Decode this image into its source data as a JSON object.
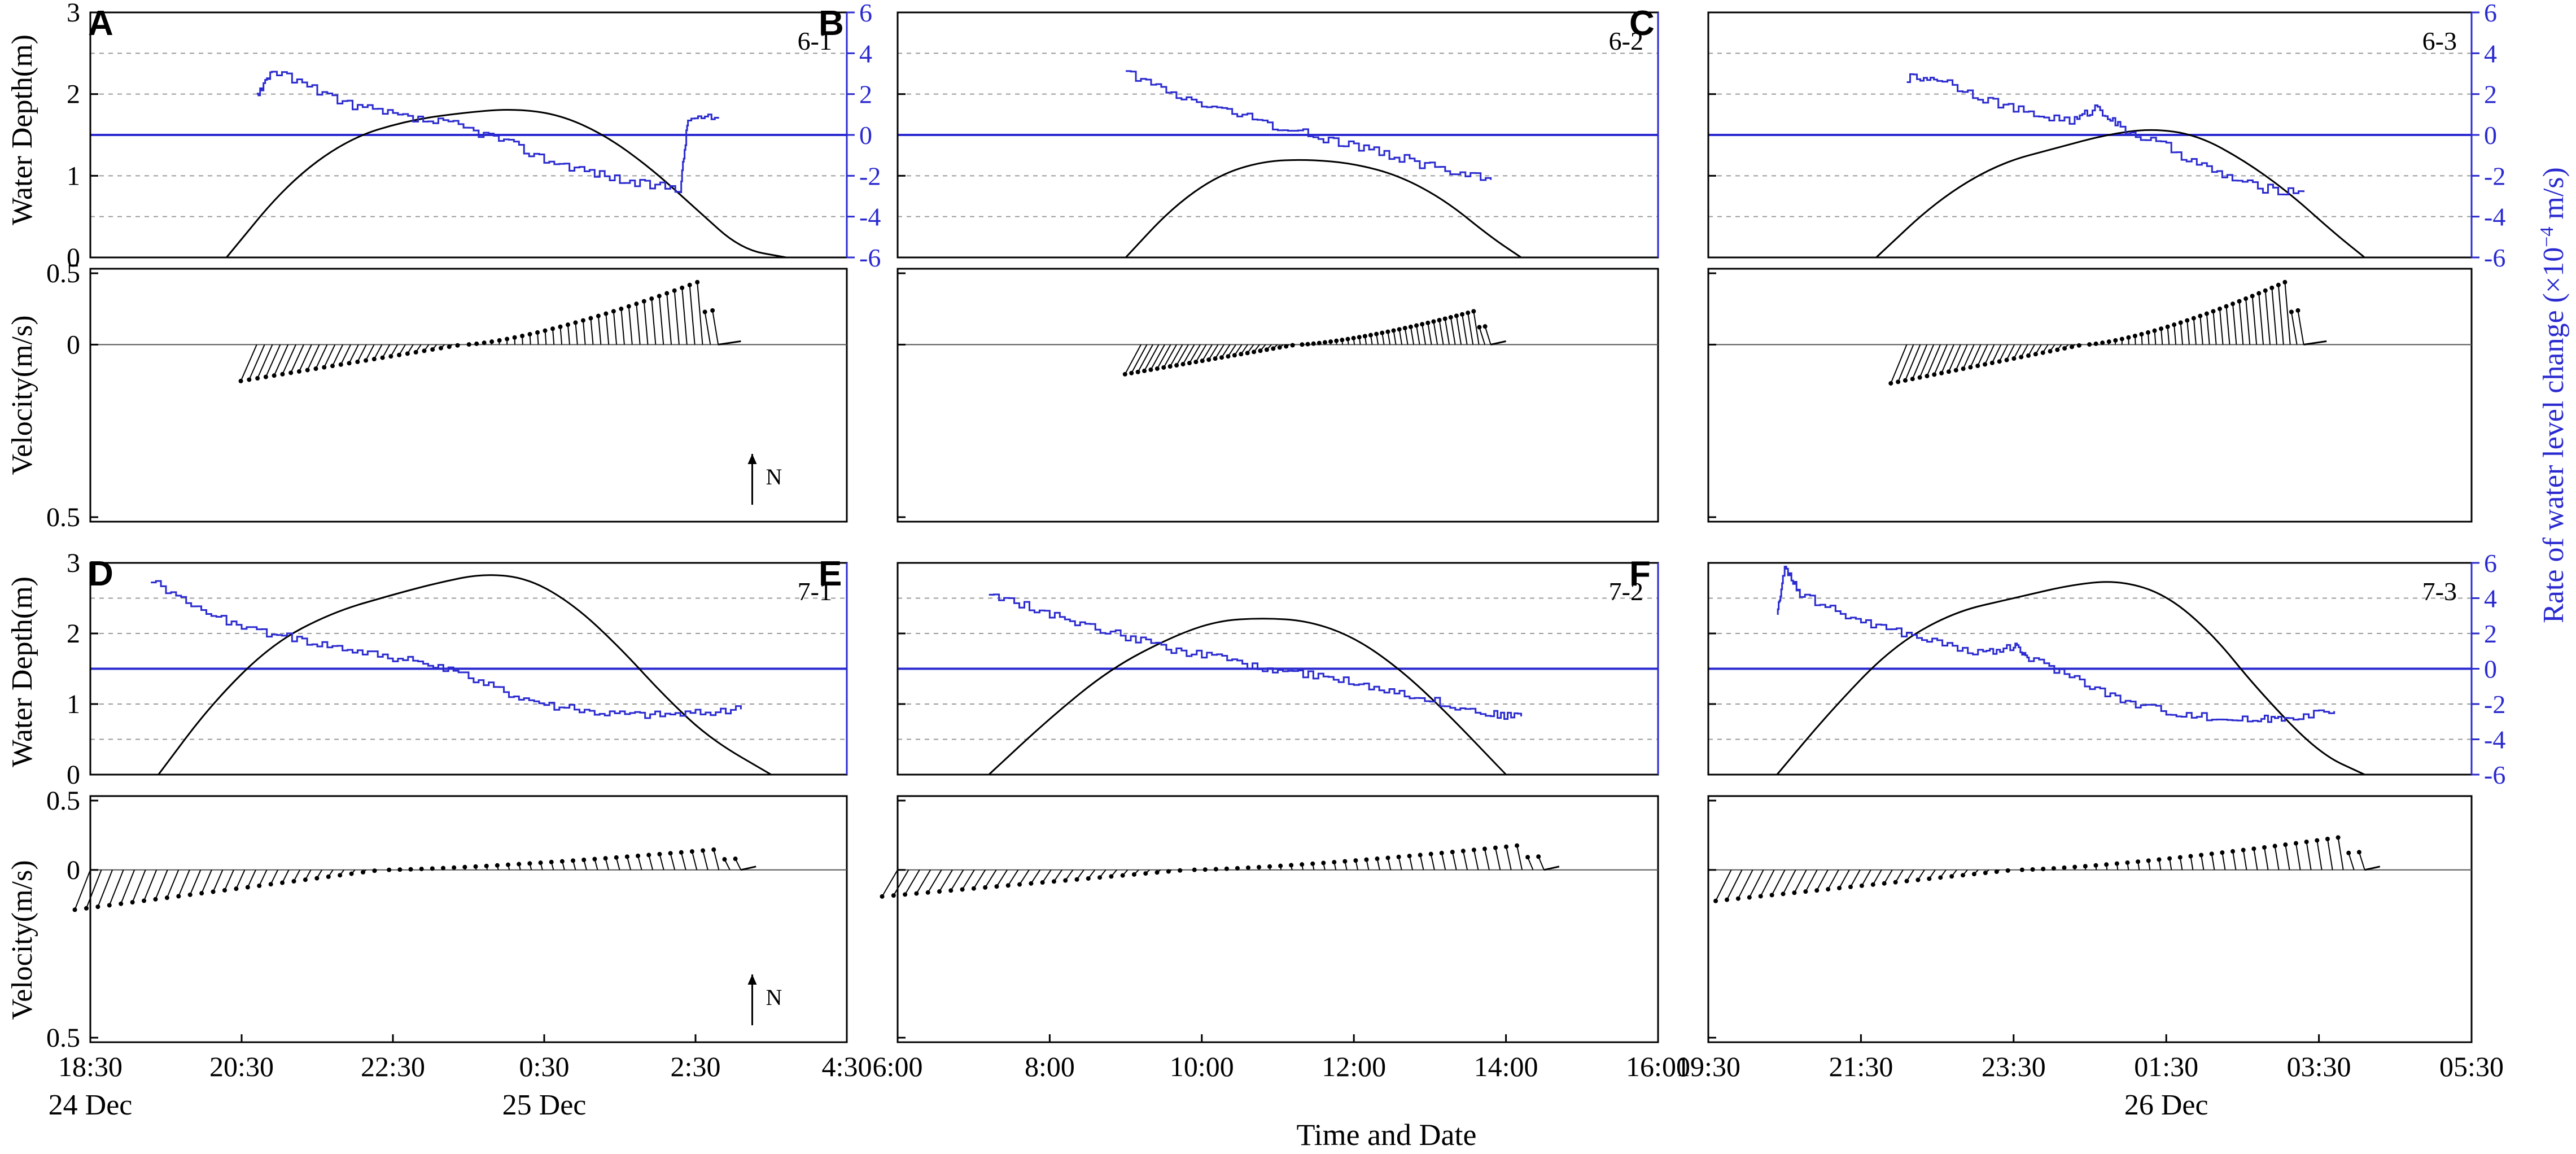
{
  "figure": {
    "xlabel": "Time and Date",
    "left_ylabel_depth": "Water Depth(m)",
    "left_ylabel_velocity": "Velocity(m/s)",
    "right_ylabel": "Rate of water level change (×10",
    "right_ylabel_exp": "−4",
    "right_ylabel_unit": " m/s)",
    "north_label": "N",
    "colors": {
      "depth": "#000000",
      "rate": "#2a2ad0",
      "axis_right": "#2a2ad0",
      "grid": "#9a9a9a"
    }
  },
  "chart_data": [
    {
      "type": "line",
      "panel": "A",
      "label": "6-1",
      "row": 0,
      "col": 0,
      "x_ticks": [
        "18:30",
        "20:30",
        "22:30",
        "0:30",
        "2:30",
        "4:30"
      ],
      "dates": [
        "24 Dec",
        "25 Dec"
      ],
      "depth_ylim": [
        0,
        3
      ],
      "depth_ticks": [
        "0",
        "1",
        "2",
        "3"
      ],
      "rate_ylim": [
        -6,
        6
      ],
      "rate_ticks": [
        "-6",
        "-4",
        "-2",
        "0",
        "2",
        "4",
        "6"
      ],
      "depth": {
        "x": [
          0.18,
          0.26,
          0.34,
          0.42,
          0.5,
          0.56,
          0.62,
          0.68,
          0.74,
          0.8,
          0.86,
          0.92
        ],
        "y": [
          0.0,
          0.9,
          1.45,
          1.68,
          1.78,
          1.82,
          1.75,
          1.5,
          1.1,
          0.6,
          0.1,
          0.0
        ]
      },
      "rate": {
        "x": [
          0.22,
          0.24,
          0.3,
          0.36,
          0.42,
          0.48,
          0.54,
          0.6,
          0.66,
          0.72,
          0.78,
          0.79,
          0.83
        ],
        "y": [
          2.0,
          3.2,
          2.1,
          1.3,
          0.8,
          0.5,
          -0.2,
          -1.2,
          -1.8,
          -2.4,
          -2.6,
          0.8,
          0.8
        ]
      },
      "velocity": {
        "ylim": [
          -0.5,
          0.5
        ],
        "ytick_labels": [
          "0.5",
          "0",
          "0.5"
        ],
        "x_start": 0.22,
        "x_end": 0.83,
        "x_stop": 0.86,
        "amp_start": 0.16,
        "amp_end": 0.3
      }
    },
    {
      "type": "line",
      "panel": "B",
      "label": "6-2",
      "row": 0,
      "col": 1,
      "x_ticks": [],
      "dates": [],
      "depth_ylim": [
        0,
        3
      ],
      "depth_ticks": [],
      "rate_ylim": [
        -6,
        6
      ],
      "rate_ticks": [],
      "depth": {
        "x": [
          0.3,
          0.36,
          0.42,
          0.48,
          0.54,
          0.6,
          0.66,
          0.72,
          0.78,
          0.82
        ],
        "y": [
          0.0,
          0.6,
          1.0,
          1.18,
          1.2,
          1.15,
          1.0,
          0.7,
          0.25,
          0.0
        ]
      },
      "rate": {
        "x": [
          0.3,
          0.36,
          0.42,
          0.48,
          0.54,
          0.6,
          0.66,
          0.72,
          0.78
        ],
        "y": [
          3.0,
          2.0,
          1.3,
          0.6,
          0.0,
          -0.5,
          -1.1,
          -1.8,
          -2.2
        ]
      },
      "velocity": {
        "ylim": [
          -0.5,
          0.5
        ],
        "ytick_labels": [],
        "x_start": 0.32,
        "x_end": 0.78,
        "x_stop": 0.8,
        "amp_start": 0.13,
        "amp_end": 0.16
      }
    },
    {
      "type": "line",
      "panel": "C",
      "label": "6-3",
      "row": 0,
      "col": 2,
      "x_ticks": [],
      "dates": [],
      "depth_ylim": [
        0,
        3
      ],
      "depth_ticks": [],
      "rate_ylim": [
        -6,
        6
      ],
      "rate_ticks": [
        "-6",
        "-4",
        "-2",
        "0",
        "2",
        "4",
        "6"
      ],
      "depth": {
        "x": [
          0.22,
          0.3,
          0.38,
          0.46,
          0.52,
          0.58,
          0.64,
          0.7,
          0.76,
          0.82,
          0.86
        ],
        "y": [
          0.0,
          0.7,
          1.15,
          1.35,
          1.5,
          1.58,
          1.5,
          1.2,
          0.8,
          0.3,
          0.0
        ]
      },
      "rate": {
        "x": [
          0.26,
          0.3,
          0.36,
          0.42,
          0.48,
          0.51,
          0.54,
          0.6,
          0.66,
          0.72,
          0.78
        ],
        "y": [
          2.8,
          2.8,
          1.8,
          1.0,
          0.7,
          1.4,
          0.3,
          -0.6,
          -1.8,
          -2.6,
          -2.8
        ]
      },
      "velocity": {
        "ylim": [
          -0.5,
          0.5
        ],
        "ytick_labels": [],
        "x_start": 0.26,
        "x_end": 0.78,
        "x_stop": 0.81,
        "amp_start": 0.17,
        "amp_end": 0.3
      }
    },
    {
      "type": "line",
      "panel": "D",
      "label": "7-1",
      "row": 1,
      "col": 0,
      "x_ticks": [
        "18:30",
        "20:30",
        "22:30",
        "0:30",
        "2:30",
        "4:30"
      ],
      "dates": [
        "24 Dec",
        "25 Dec"
      ],
      "depth_ylim": [
        0,
        3
      ],
      "depth_ticks": [
        "0",
        "1",
        "2",
        "3"
      ],
      "rate_ylim": [
        -6,
        6
      ],
      "rate_ticks": [],
      "depth": {
        "x": [
          0.09,
          0.16,
          0.24,
          0.32,
          0.4,
          0.46,
          0.52,
          0.58,
          0.64,
          0.7,
          0.76,
          0.82,
          0.9
        ],
        "y": [
          0.0,
          1.0,
          1.85,
          2.3,
          2.55,
          2.72,
          2.85,
          2.78,
          2.4,
          1.8,
          1.1,
          0.5,
          0.0
        ]
      },
      "rate": {
        "x": [
          0.08,
          0.14,
          0.2,
          0.26,
          0.32,
          0.38,
          0.44,
          0.5,
          0.56,
          0.62,
          0.68,
          0.74,
          0.8,
          0.86
        ],
        "y": [
          5.0,
          3.5,
          2.3,
          1.8,
          1.3,
          0.8,
          0.3,
          -0.5,
          -1.5,
          -2.2,
          -2.5,
          -2.6,
          -2.5,
          -2.3
        ]
      },
      "velocity": {
        "ylim": [
          -0.5,
          0.5
        ],
        "ytick_labels": [
          "0.5",
          "0",
          "0.5"
        ],
        "x_start": 0.0,
        "x_end": 0.86,
        "x_stop": 0.88,
        "amp_start": 0.18,
        "amp_end": 0.1
      }
    },
    {
      "type": "line",
      "panel": "E",
      "label": "7-2",
      "row": 1,
      "col": 1,
      "x_ticks": [
        "6:00",
        "8:00",
        "10:00",
        "12:00",
        "14:00",
        "16:00"
      ],
      "dates": [],
      "depth_ylim": [
        0,
        3
      ],
      "depth_ticks": [],
      "rate_ylim": [
        -6,
        6
      ],
      "rate_ticks": [],
      "depth": {
        "x": [
          0.12,
          0.2,
          0.28,
          0.36,
          0.42,
          0.48,
          0.54,
          0.6,
          0.66,
          0.72,
          0.8
        ],
        "y": [
          0.0,
          0.8,
          1.5,
          1.95,
          2.18,
          2.22,
          2.18,
          1.95,
          1.5,
          0.9,
          0.0
        ]
      },
      "rate": {
        "x": [
          0.12,
          0.18,
          0.24,
          0.3,
          0.36,
          0.42,
          0.48,
          0.54,
          0.6,
          0.66,
          0.72,
          0.78,
          0.82
        ],
        "y": [
          4.2,
          3.4,
          2.5,
          1.8,
          1.1,
          0.6,
          0.0,
          -0.3,
          -0.8,
          -1.3,
          -2.0,
          -2.6,
          -2.7
        ]
      },
      "velocity": {
        "ylim": [
          -0.5,
          0.5
        ],
        "ytick_labels": [],
        "x_start": 0.0,
        "x_end": 0.85,
        "x_stop": 0.87,
        "amp_start": 0.12,
        "amp_end": 0.12
      }
    },
    {
      "type": "line",
      "panel": "F",
      "label": "7-3",
      "row": 1,
      "col": 2,
      "x_ticks": [
        "19:30",
        "21:30",
        "23:30",
        "01:30",
        "03:30",
        "05:30"
      ],
      "dates": [
        "26 Dec"
      ],
      "depth_ylim": [
        0,
        3
      ],
      "depth_ticks": [],
      "rate_ylim": [
        -6,
        6
      ],
      "rate_ticks": [
        "-6",
        "-4",
        "-2",
        "0",
        "2",
        "4",
        "6"
      ],
      "depth": {
        "x": [
          0.09,
          0.16,
          0.24,
          0.32,
          0.4,
          0.48,
          0.54,
          0.6,
          0.66,
          0.72,
          0.8,
          0.86
        ],
        "y": [
          0.0,
          0.9,
          1.8,
          2.3,
          2.5,
          2.7,
          2.75,
          2.55,
          2.0,
          1.2,
          0.3,
          0.0
        ]
      },
      "rate": {
        "x": [
          0.09,
          0.1,
          0.12,
          0.18,
          0.24,
          0.3,
          0.36,
          0.4,
          0.42,
          0.48,
          0.54,
          0.6,
          0.66,
          0.72,
          0.76,
          0.82
        ],
        "y": [
          3.0,
          5.8,
          4.2,
          3.0,
          2.2,
          1.5,
          0.8,
          1.3,
          0.6,
          -0.5,
          -1.8,
          -2.4,
          -2.8,
          -2.9,
          -2.7,
          -2.4
        ]
      },
      "velocity": {
        "ylim": [
          -0.5,
          0.5
        ],
        "ytick_labels": [],
        "x_start": 0.03,
        "x_end": 0.86,
        "x_stop": 0.88,
        "amp_start": 0.14,
        "amp_end": 0.16
      }
    }
  ]
}
